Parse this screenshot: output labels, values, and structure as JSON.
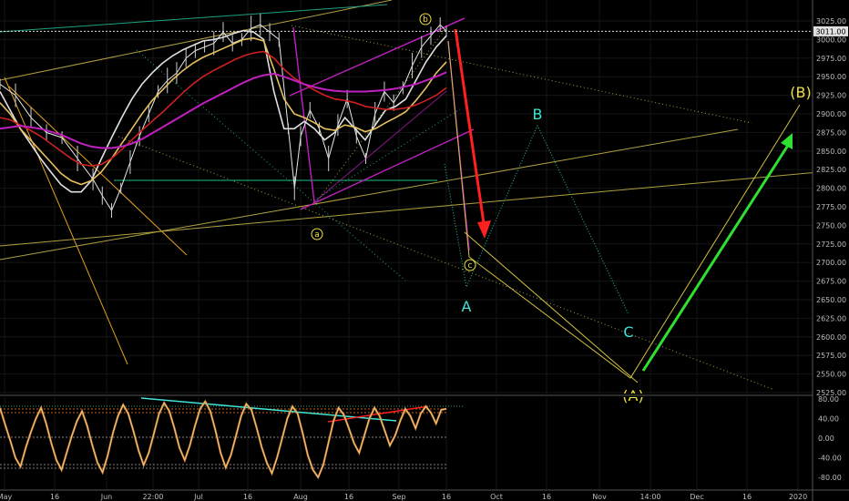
{
  "chart_data": [
    {
      "type": "line",
      "panel": "price",
      "title": "",
      "ylim": [
        2517,
        3045
      ],
      "y_ticks": [
        "3025.00",
        "3000.00",
        "2975.00",
        "2950.00",
        "2925.00",
        "2900.00",
        "2875.00",
        "2850.00",
        "2825.00",
        "2800.00",
        "2775.00",
        "2750.00",
        "2725.00",
        "2700.00",
        "2675.00",
        "2650.00",
        "2625.00",
        "2600.00",
        "2575.00",
        "2550.00",
        "2525.00"
      ],
      "y_tick_values": [
        3025,
        3000,
        2975,
        2950,
        2925,
        2900,
        2875,
        2850,
        2825,
        2800,
        2775,
        2750,
        2725,
        2700,
        2675,
        2650,
        2625,
        2600,
        2575,
        2550,
        2525
      ],
      "last_price_label": "3011.00",
      "last_price": 3011,
      "price_series": [
        {
          "t": 0,
          "v": 2940
        },
        {
          "t": 5,
          "v": 2925
        },
        {
          "t": 10,
          "v": 2895
        },
        {
          "t": 15,
          "v": 2875
        },
        {
          "t": 20,
          "v": 2868
        },
        {
          "t": 25,
          "v": 2840
        },
        {
          "t": 30,
          "v": 2812
        },
        {
          "t": 33,
          "v": 2790
        },
        {
          "t": 36,
          "v": 2770
        },
        {
          "t": 39,
          "v": 2800
        },
        {
          "t": 42,
          "v": 2835
        },
        {
          "t": 45,
          "v": 2870
        },
        {
          "t": 48,
          "v": 2900
        },
        {
          "t": 51,
          "v": 2930
        },
        {
          "t": 54,
          "v": 2945
        },
        {
          "t": 57,
          "v": 2955
        },
        {
          "t": 60,
          "v": 2975
        },
        {
          "t": 63,
          "v": 2985
        },
        {
          "t": 66,
          "v": 2990
        },
        {
          "t": 69,
          "v": 2995
        },
        {
          "t": 72,
          "v": 3010
        },
        {
          "t": 75,
          "v": 2995
        },
        {
          "t": 78,
          "v": 3000
        },
        {
          "t": 81,
          "v": 3015
        },
        {
          "t": 84,
          "v": 3020
        },
        {
          "t": 87,
          "v": 3010
        },
        {
          "t": 90,
          "v": 3000
        },
        {
          "t": 93,
          "v": 2880
        },
        {
          "t": 95,
          "v": 2800
        },
        {
          "t": 97,
          "v": 2870
        },
        {
          "t": 100,
          "v": 2905
        },
        {
          "t": 103,
          "v": 2880
        },
        {
          "t": 106,
          "v": 2840
        },
        {
          "t": 109,
          "v": 2885
        },
        {
          "t": 112,
          "v": 2920
        },
        {
          "t": 115,
          "v": 2870
        },
        {
          "t": 118,
          "v": 2840
        },
        {
          "t": 121,
          "v": 2900
        },
        {
          "t": 124,
          "v": 2930
        },
        {
          "t": 127,
          "v": 2915
        },
        {
          "t": 130,
          "v": 2935
        },
        {
          "t": 133,
          "v": 2965
        },
        {
          "t": 136,
          "v": 2990
        },
        {
          "t": 139,
          "v": 3005
        },
        {
          "t": 142,
          "v": 3020
        },
        {
          "t": 144,
          "v": 3011
        }
      ],
      "ma_series": [
        {
          "name": "",
          "color": "#e0e0e0",
          "values": [
            2930,
            2905,
            2880,
            2860,
            2840,
            2822,
            2805,
            2795,
            2795,
            2810,
            2840,
            2868,
            2895,
            2920,
            2940,
            2955,
            2968,
            2978,
            2986,
            2992,
            2998,
            3000,
            3003,
            3008,
            3012,
            3010,
            3000,
            2930,
            2880,
            2880,
            2890,
            2880,
            2865,
            2875,
            2895,
            2880,
            2865,
            2885,
            2905,
            2910,
            2920,
            2945,
            2970,
            2990,
            3005
          ]
        },
        {
          "name": "",
          "color": "#e8c060",
          "values": [
            2915,
            2900,
            2880,
            2865,
            2850,
            2835,
            2820,
            2810,
            2805,
            2810,
            2822,
            2840,
            2860,
            2880,
            2900,
            2918,
            2932,
            2946,
            2958,
            2968,
            2976,
            2982,
            2988,
            2994,
            3000,
            3002,
            2998,
            2960,
            2920,
            2900,
            2895,
            2888,
            2880,
            2878,
            2885,
            2882,
            2876,
            2880,
            2888,
            2895,
            2903,
            2918,
            2935,
            2955,
            2970
          ]
        },
        {
          "name": "",
          "color": "#d02020",
          "values": [
            2895,
            2892,
            2885,
            2878,
            2870,
            2860,
            2850,
            2840,
            2832,
            2830,
            2832,
            2840,
            2852,
            2865,
            2878,
            2890,
            2902,
            2915,
            2928,
            2940,
            2950,
            2958,
            2965,
            2972,
            2978,
            2982,
            2984,
            2975,
            2960,
            2948,
            2940,
            2932,
            2925,
            2920,
            2918,
            2915,
            2910,
            2908,
            2906,
            2906,
            2908,
            2912,
            2918,
            2925,
            2935
          ]
        },
        {
          "name": "",
          "color": "#c020c0",
          "values": [
            2880,
            2882,
            2884,
            2882,
            2880,
            2876,
            2872,
            2866,
            2860,
            2856,
            2854,
            2854,
            2856,
            2860,
            2866,
            2874,
            2882,
            2890,
            2898,
            2906,
            2914,
            2921,
            2928,
            2935,
            2942,
            2948,
            2952,
            2954,
            2950,
            2945,
            2940,
            2936,
            2933,
            2931,
            2930,
            2930,
            2930,
            2931,
            2932,
            2934,
            2937,
            2940,
            2945,
            2950,
            2956
          ]
        }
      ]
    },
    {
      "type": "line",
      "panel": "oscillator",
      "ylim": [
        -90,
        85
      ],
      "y_ticks": [
        "80.00",
        "40.00",
        "0.00",
        "-40.00",
        "-80.00"
      ],
      "y_tick_values": [
        80,
        40,
        0,
        -40,
        -80
      ],
      "values": [
        62,
        28,
        -5,
        -40,
        -58,
        -20,
        12,
        40,
        62,
        30,
        -10,
        -45,
        -65,
        -30,
        5,
        35,
        55,
        25,
        -15,
        -50,
        -70,
        -35,
        10,
        45,
        68,
        50,
        15,
        -25,
        -55,
        -30,
        10,
        50,
        72,
        55,
        20,
        -20,
        -45,
        -15,
        25,
        60,
        75,
        55,
        15,
        -30,
        -60,
        -35,
        5,
        45,
        70,
        58,
        22,
        -18,
        -50,
        -72,
        -40,
        0,
        40,
        65,
        50,
        10,
        -35,
        -65,
        -80,
        -55,
        -10,
        35,
        62,
        48,
        20,
        -10,
        -30,
        5,
        40,
        62,
        45,
        15,
        -15,
        5,
        35,
        60,
        45,
        20,
        50,
        65,
        52,
        30,
        58,
        60
      ]
    }
  ],
  "x_axis": {
    "ticks": [
      "May",
      "16",
      "Jun",
      "22:00",
      "Jul",
      "16",
      "Aug",
      "16",
      "Sep",
      "16",
      "Oct",
      "16",
      "Nov",
      "14:00",
      "Dec",
      "16",
      "2020"
    ]
  },
  "wave_labels": {
    "small_a": "a",
    "small_b": "b",
    "small_c": "c",
    "A": "A",
    "B": "B",
    "C": "C",
    "big_A": "(A)",
    "big_B": "(B)"
  },
  "forecast": {
    "b_top": 3020,
    "c_low": 2735,
    "A_low": 2665,
    "B_high": 2885,
    "C_low": 2630,
    "bigA_low": 2542,
    "bigB_high": 2913
  },
  "colors": {
    "price": "#e8e8e8",
    "cyan_wave": "#3fe6d6",
    "yellow_wave": "#f0e040",
    "magenta_channel": "#c020c0",
    "red_arrow": "#ff2020",
    "green_arrow": "#30e030",
    "orange_trend": "#e8a020",
    "olive_trend": "#a0a040",
    "teal_line": "#20a080",
    "grid": "#1a1a1a",
    "osc_line": "#e8a020"
  }
}
